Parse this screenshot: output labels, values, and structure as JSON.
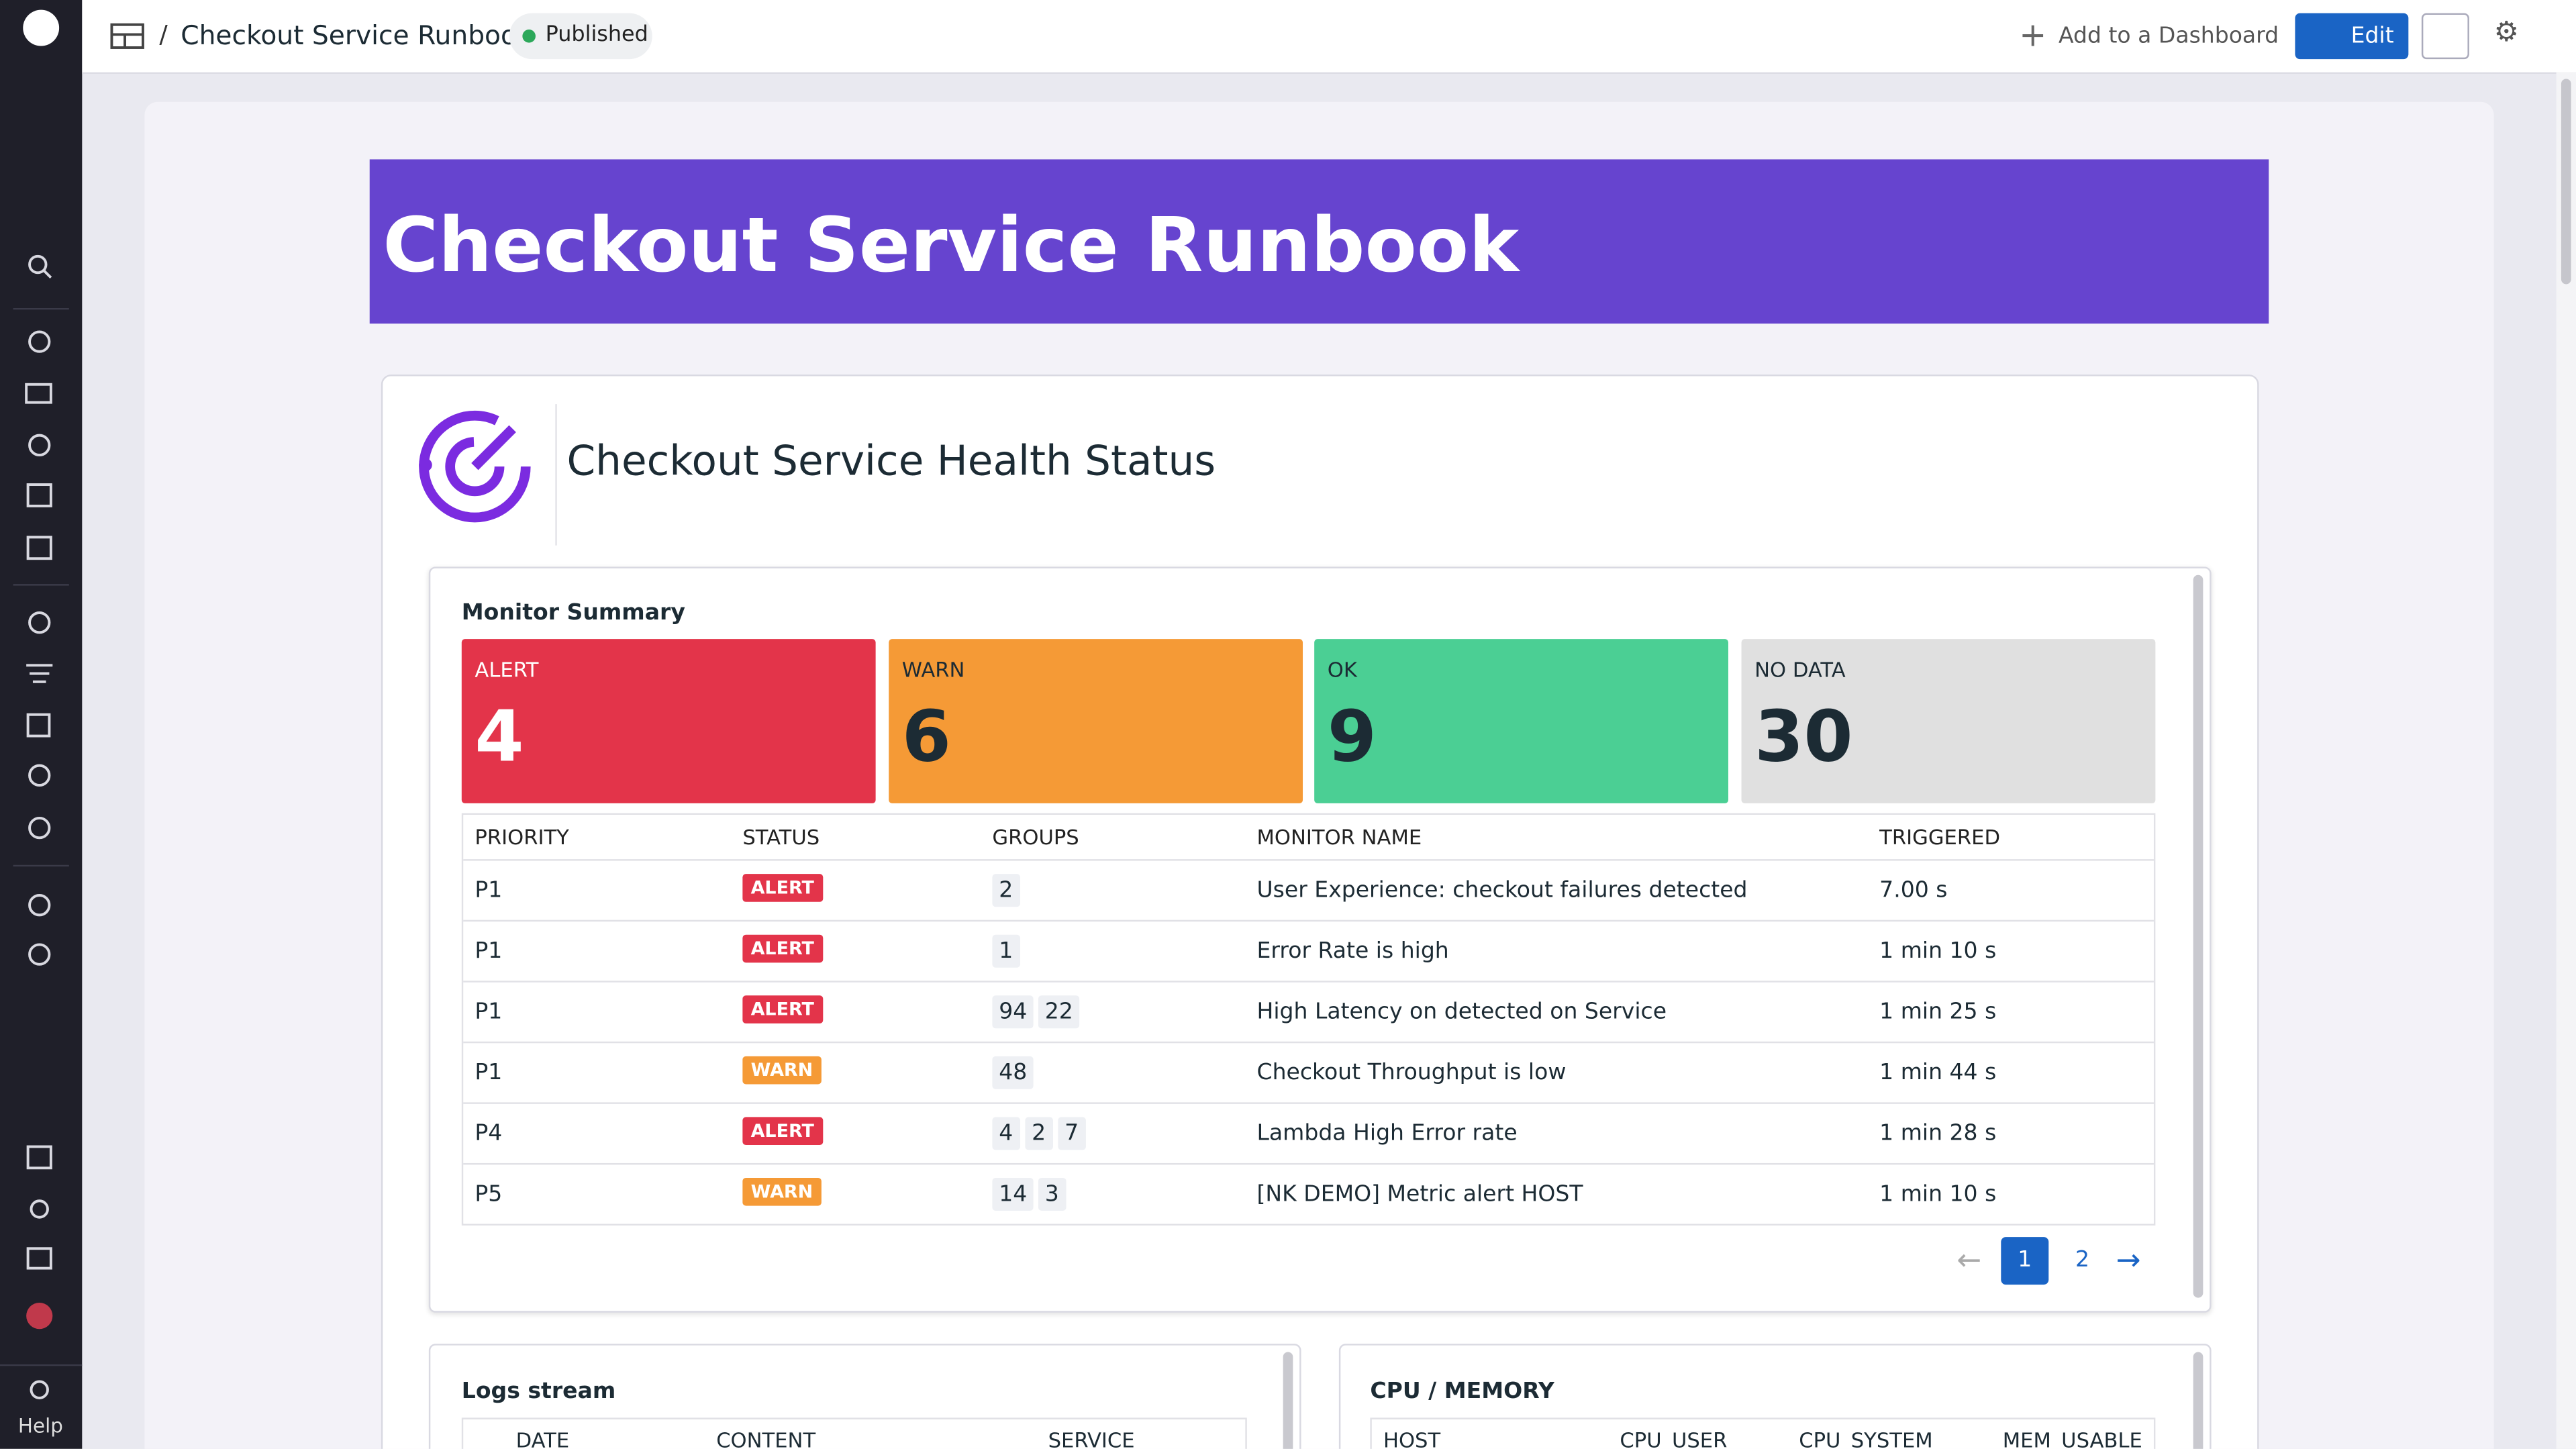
{
  "header": {
    "breadcrumb_title": "Checkout Service Runbook",
    "status": "Published",
    "add_to_dashboard": "Add to a Dashboard",
    "edit": "Edit"
  },
  "sidebar": {
    "help": "Help"
  },
  "banner": {
    "title": "Checkout Service Runbook"
  },
  "health_section": {
    "title": "Checkout Service Health Status"
  },
  "monitor_summary": {
    "title": "Monitor Summary",
    "counts": [
      {
        "label": "ALERT",
        "value": 4
      },
      {
        "label": "WARN",
        "value": 6
      },
      {
        "label": "OK",
        "value": 9
      },
      {
        "label": "NO DATA",
        "value": 30
      }
    ],
    "table": {
      "columns": [
        "PRIORITY",
        "STATUS",
        "GROUPS",
        "MONITOR NAME",
        "TRIGGERED"
      ],
      "rows": [
        {
          "priority": "P1",
          "status": "ALERT",
          "groups": [
            2
          ],
          "name": "User Experience: checkout failures detected",
          "triggered": "7.00 s"
        },
        {
          "priority": "P1",
          "status": "ALERT",
          "groups": [
            1
          ],
          "name": "Error Rate is high",
          "triggered": "1 min 10 s"
        },
        {
          "priority": "P1",
          "status": "ALERT",
          "groups": [
            94,
            22
          ],
          "name": "High Latency on detected on Service",
          "triggered": "1 min 25 s"
        },
        {
          "priority": "P1",
          "status": "WARN",
          "groups": [
            48
          ],
          "name": "Checkout Throughput is low",
          "triggered": "1 min 44 s"
        },
        {
          "priority": "P4",
          "status": "ALERT",
          "groups": [
            4,
            2,
            7
          ],
          "name": "Lambda High Error rate",
          "triggered": "1 min 28 s"
        },
        {
          "priority": "P5",
          "status": "WARN",
          "groups": [
            14,
            3
          ],
          "name": "[NK DEMO] Metric alert HOST",
          "triggered": "1 min 10 s"
        }
      ]
    },
    "pagination": {
      "pages": [
        1,
        2
      ],
      "current": 1
    }
  },
  "logs_stream": {
    "title": "Logs stream",
    "columns": [
      "DATE",
      "CONTENT",
      "SERVICE"
    ]
  },
  "cpu_memory": {
    "title": "CPU / MEMORY",
    "columns": [
      "HOST",
      "CPU_USER",
      "CPU_SYSTEM",
      "MEM_USABLE"
    ]
  }
}
